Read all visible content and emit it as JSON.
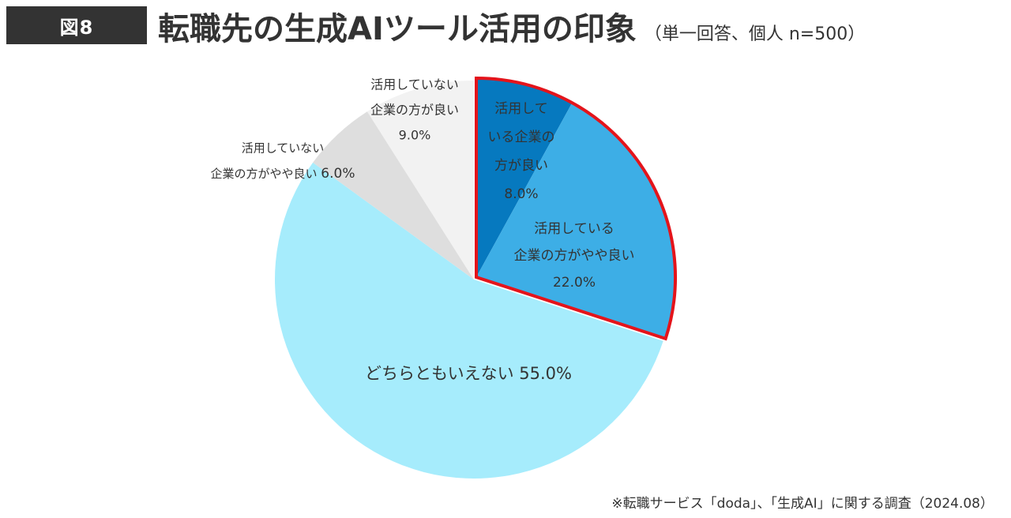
{
  "header": {
    "figure_label": "図8",
    "title": "転職先の生成AIツール活用の印象",
    "subtitle": "（単一回答、個人 n=500）"
  },
  "footer": {
    "source": "※転職サービス「doda」、「生成AI」に関する調査（2024.08）"
  },
  "colors": {
    "badge_bg": "#333333",
    "text": "#333333",
    "highlight_border": "#e4141b"
  },
  "chart_data": {
    "type": "pie",
    "title": "転職先の生成AIツール活用の印象",
    "start": "12 o'clock",
    "direction": "clockwise",
    "highlighted_group": [
      "use_good",
      "use_somewhat"
    ],
    "slices": [
      {
        "key": "use_good",
        "lines": [
          "活用して",
          "いる企業の",
          "方が良い"
        ],
        "value_label": "8.0%",
        "value": 8.0,
        "color": "#0679bf"
      },
      {
        "key": "use_somewhat",
        "lines": [
          "活用している",
          "企業の方がやや良い"
        ],
        "value_label": "22.0%",
        "value": 22.0,
        "color": "#3daee6"
      },
      {
        "key": "neither",
        "lines": [
          "どちらともいえない"
        ],
        "value_label": "55.0%",
        "value": 55.0,
        "color": "#a6ecfc"
      },
      {
        "key": "notuse_somewhat",
        "lines": [
          "活用していない",
          "企業の方がやや良い"
        ],
        "value_label": "6.0%",
        "value": 6.0,
        "color": "#dedede"
      },
      {
        "key": "notuse_good",
        "lines": [
          "活用していない",
          "企業の方が良い"
        ],
        "value_label": "9.0%",
        "value": 9.0,
        "color": "#f2f2f2"
      }
    ]
  }
}
